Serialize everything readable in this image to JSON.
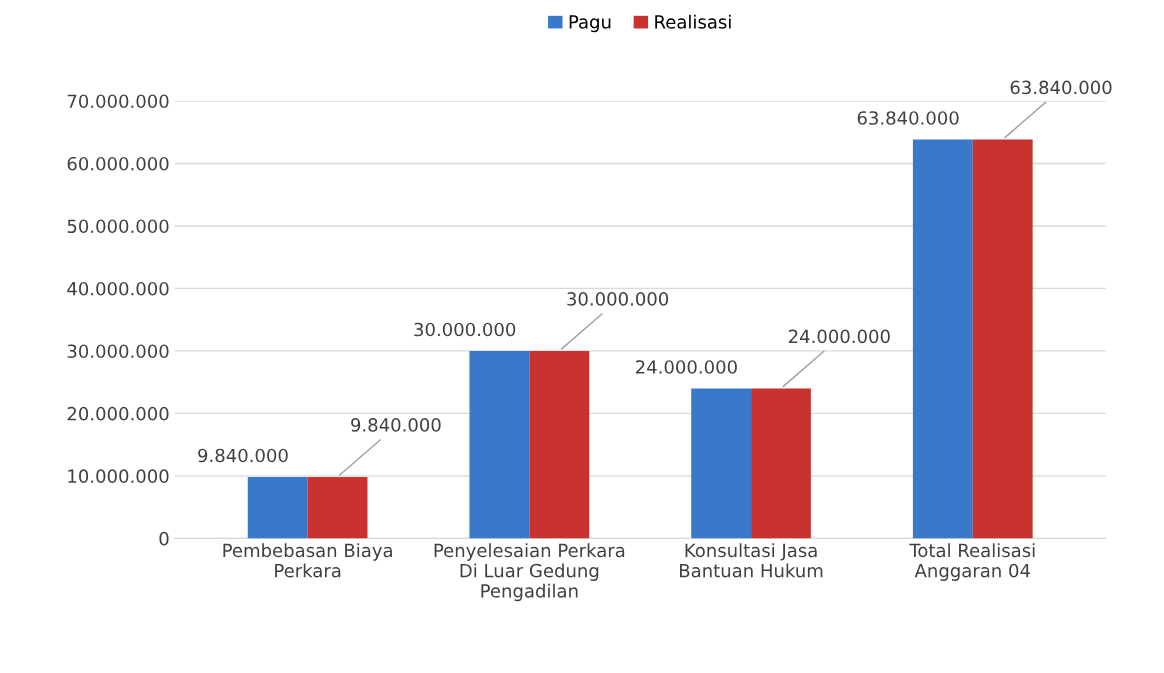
{
  "chart_data": {
    "type": "bar",
    "categories": [
      "Pembebasan Biaya\nPerkara",
      "Penyelesaian Perkara\nDi Luar Gedung\nPengadilan",
      "Konsultasi Jasa\nBantuan Hukum",
      "Total Realisasi\nAnggaran 04"
    ],
    "series": [
      {
        "name": "Pagu",
        "color": "#3a78c9",
        "values": [
          9840000,
          30000000,
          24000000,
          63840000
        ],
        "value_labels": [
          "9.840.000",
          "30.000.000",
          "24.000.000",
          "63.840.000"
        ]
      },
      {
        "name": "Realisasi",
        "color": "#c8332f",
        "values": [
          9840000,
          30000000,
          24000000,
          63840000
        ],
        "value_labels": [
          "9.840.000",
          "30.000.000",
          "24.000.000",
          "63.840.000"
        ]
      }
    ],
    "ylim": [
      0,
      70000000
    ],
    "yticks": [
      {
        "value": 0,
        "label": "0"
      },
      {
        "value": 10000000,
        "label": "10.000.000"
      },
      {
        "value": 20000000,
        "label": "20.000.000"
      },
      {
        "value": 30000000,
        "label": "30.000.000"
      },
      {
        "value": 40000000,
        "label": "40.000.000"
      },
      {
        "value": 50000000,
        "label": "50.000.000"
      },
      {
        "value": 60000000,
        "label": "60.000.000"
      },
      {
        "value": 70000000,
        "label": "70.000.000"
      }
    ],
    "grid": "y",
    "legend": "top"
  }
}
